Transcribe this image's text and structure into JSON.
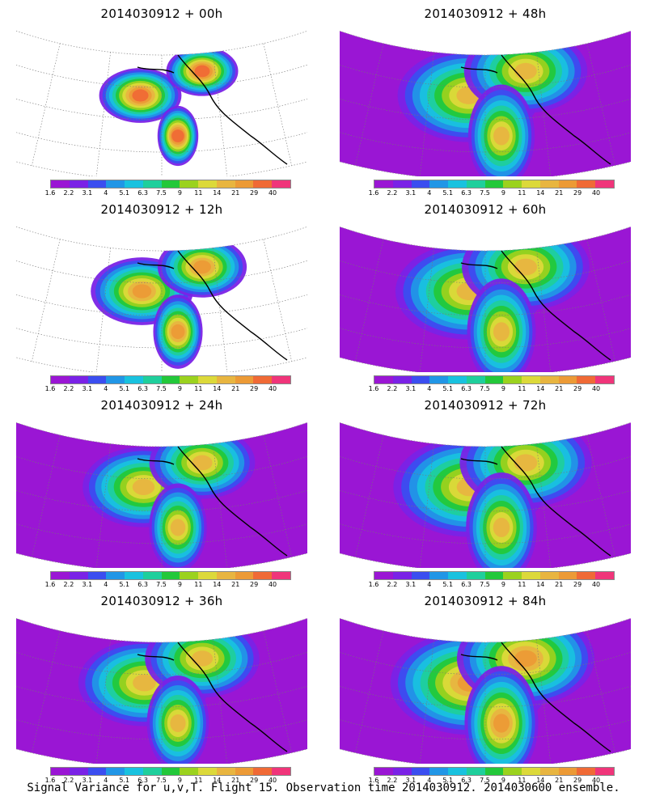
{
  "footer": "Signal Variance for u,v,T. Flight 15. Observation time 2014030912. 2014030600 ensemble.",
  "colorbar": {
    "labels": [
      "1.6",
      "2.2",
      "3.1",
      "4",
      "5.1",
      "6.3",
      "7.5",
      "9",
      "11",
      "14",
      "21",
      "29",
      "40"
    ],
    "colors": [
      "#9a16d4",
      "#7a22e6",
      "#3b4ef0",
      "#2196e6",
      "#19c2df",
      "#1fcf9c",
      "#23c83a",
      "#9bd21e",
      "#dcd93a",
      "#e8b540",
      "#ec9a36",
      "#f06a36",
      "#f0357a"
    ]
  },
  "panels": [
    {
      "title": "2014030912 + 00h",
      "peak": 12,
      "spread": 0.35,
      "col": 0,
      "row": 0
    },
    {
      "title": "2014030912 + 12h",
      "peak": 11,
      "spread": 0.55,
      "col": 0,
      "row": 1
    },
    {
      "title": "2014030912 + 24h",
      "peak": 10,
      "spread": 0.75,
      "col": 0,
      "row": 2
    },
    {
      "title": "2014030912 + 36h",
      "peak": 10,
      "spread": 0.85,
      "col": 0,
      "row": 3
    },
    {
      "title": "2014030912 + 48h",
      "peak": 10,
      "spread": 0.95,
      "col": 1,
      "row": 0
    },
    {
      "title": "2014030912 + 60h",
      "peak": 10,
      "spread": 1.0,
      "col": 1,
      "row": 1
    },
    {
      "title": "2014030912 + 72h",
      "peak": 10,
      "spread": 1.05,
      "col": 1,
      "row": 2
    },
    {
      "title": "2014030912 + 84h",
      "peak": 11,
      "spread": 1.1,
      "col": 1,
      "row": 3
    }
  ]
}
